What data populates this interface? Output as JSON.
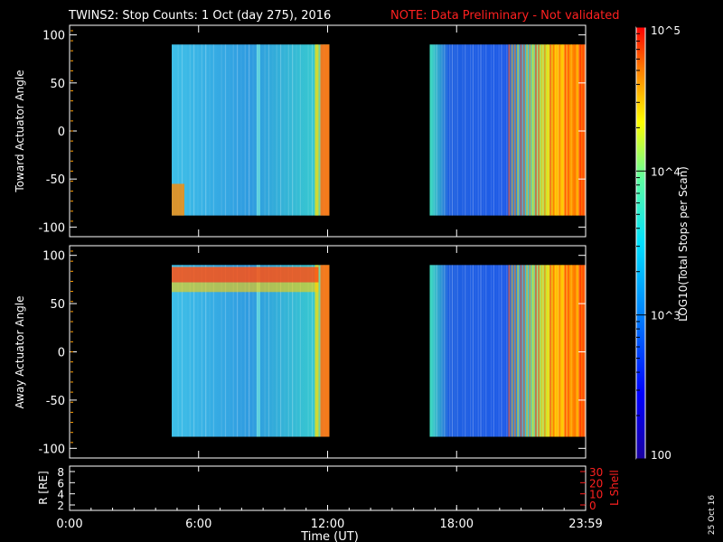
{
  "header": {
    "title": "TWINS2: Stop Counts:  1 Oct (day 275), 2016",
    "note": "NOTE: Data Preliminary - Not validated"
  },
  "chart_data": [
    {
      "type": "heatmap",
      "ylabel": "Toward Actuator Angle",
      "ylim": [
        -110,
        110
      ],
      "yticks": [
        "100",
        "50",
        "0",
        "-50",
        "-100"
      ],
      "xlim": [
        0,
        24
      ],
      "data_blocks": [
        {
          "start": "04:45",
          "end": "12:05",
          "angle_range": [
            -88,
            90
          ]
        },
        {
          "start": "16:45",
          "end": "23:59",
          "angle_range": [
            -88,
            90
          ]
        }
      ]
    },
    {
      "type": "heatmap",
      "ylabel": "Away Actuator Angle",
      "ylim": [
        -110,
        110
      ],
      "yticks": [
        "100",
        "50",
        "0",
        "-50",
        "-100"
      ],
      "xlim": [
        0,
        24
      ],
      "data_blocks": [
        {
          "start": "04:45",
          "end": "12:05",
          "angle_range": [
            -88,
            90
          ]
        },
        {
          "start": "16:45",
          "end": "23:59",
          "angle_range": [
            -88,
            90
          ]
        }
      ]
    },
    {
      "type": "line",
      "ylabel": "R [RE]",
      "yticks": [
        "8",
        "6",
        "4",
        "2"
      ],
      "y2label": "L Shell",
      "y2ticks": [
        "30",
        "20",
        "10",
        "0"
      ],
      "xlabel": "Time (UT)",
      "xticks": [
        "0:00",
        "6:00",
        "12:00",
        "18:00",
        "23:59"
      ],
      "series": []
    }
  ],
  "colorbar": {
    "label": "LOG10(Total Stops per Scan)",
    "scale": "log",
    "range": [
      100,
      100000
    ],
    "tick_labels": [
      "10^5",
      "10^4",
      "10^3",
      "100"
    ]
  },
  "footer": {
    "date_stamp": "25 Oct 16"
  }
}
